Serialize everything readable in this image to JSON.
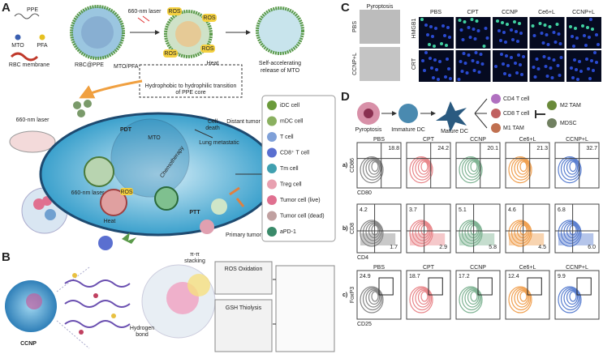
{
  "panel_labels": [
    "A",
    "B",
    "C",
    "D"
  ],
  "A": {
    "ppe": "PPE",
    "mto": "MTO",
    "pfa": "PFA",
    "rbc": "RBC membrane",
    "laser_top": "660-nm laser",
    "nanoparticle": "RBC@PPE",
    "nanoparticle_sub": "MTO/PFA",
    "ros": "ROS",
    "heat": "Heat",
    "release": [
      "Self-accelerating",
      "release of MTO"
    ],
    "transition": [
      "Hydrophobic to hydrophilic transition",
      "of PPE core"
    ],
    "laser_mouse": "660-nm laser",
    "pdt": "PDT",
    "cell_death": [
      "Cell",
      "death"
    ],
    "mto_cell": "MTO",
    "chemo": "Chemotherapy",
    "lung": "Lung metastatic",
    "distant": "Distant tumor",
    "laser_cell": "660-nm laser",
    "heat_cell": "Heat",
    "ptt": "PTT",
    "primary": "Primary tumor",
    "legend": [
      "iDC cell",
      "mDC cell",
      "T cell",
      "CD8⁺ T cell",
      "Tm cell",
      "Treg cell",
      "Tumor cell (live)",
      "Tumor cell (dead)",
      "aPD-1"
    ]
  },
  "B": {
    "stacking": [
      "π-π",
      "stacking"
    ],
    "hbond": [
      "Hydrogen",
      "bond"
    ],
    "oxidation": "ROS Oxidation",
    "thiolysis": "GSH Thiolysis",
    "ccnp": "CCNP"
  },
  "C": {
    "pyroptosis": "Pyroptosis",
    "rows_left": [
      "PBS",
      "CCNP+L"
    ],
    "columns": [
      "PBS",
      "CPT",
      "CCNP",
      "Ce6+L",
      "CCNP+L"
    ],
    "rows": [
      "HMGB1",
      "CRT"
    ]
  },
  "D": {
    "schema": [
      "Pyroptosis",
      "Immature DC",
      "Mature DC"
    ],
    "effects": [
      "CD4 T cell",
      "CD8 T cell",
      "M1 TAM",
      "M2 TAM",
      "MDSC"
    ],
    "groups": [
      "PBS",
      "CPT",
      "CCNP",
      "Ce6+L",
      "CCNP+L"
    ],
    "a": {
      "label": "a)",
      "y_axis": "CD86",
      "x_axis": "CD80",
      "values": [
        "18.8",
        "24.2",
        "20.1",
        "21.3",
        "32.7"
      ]
    },
    "b": {
      "label": "b)",
      "y_axis": "CD8",
      "x_axis": "CD4",
      "upper_left": [
        "4.2",
        "3.7",
        "5.1",
        "4.6",
        "6.8"
      ],
      "lower_right": [
        "1.7",
        "2.9",
        "5.8",
        "4.5",
        "6.0"
      ]
    },
    "c": {
      "label": "c)",
      "y_axis": "FoxP3",
      "x_axis": "CD25",
      "values": [
        "24.9",
        "18.7",
        "17.2",
        "12.4",
        "9.9"
      ]
    }
  }
}
